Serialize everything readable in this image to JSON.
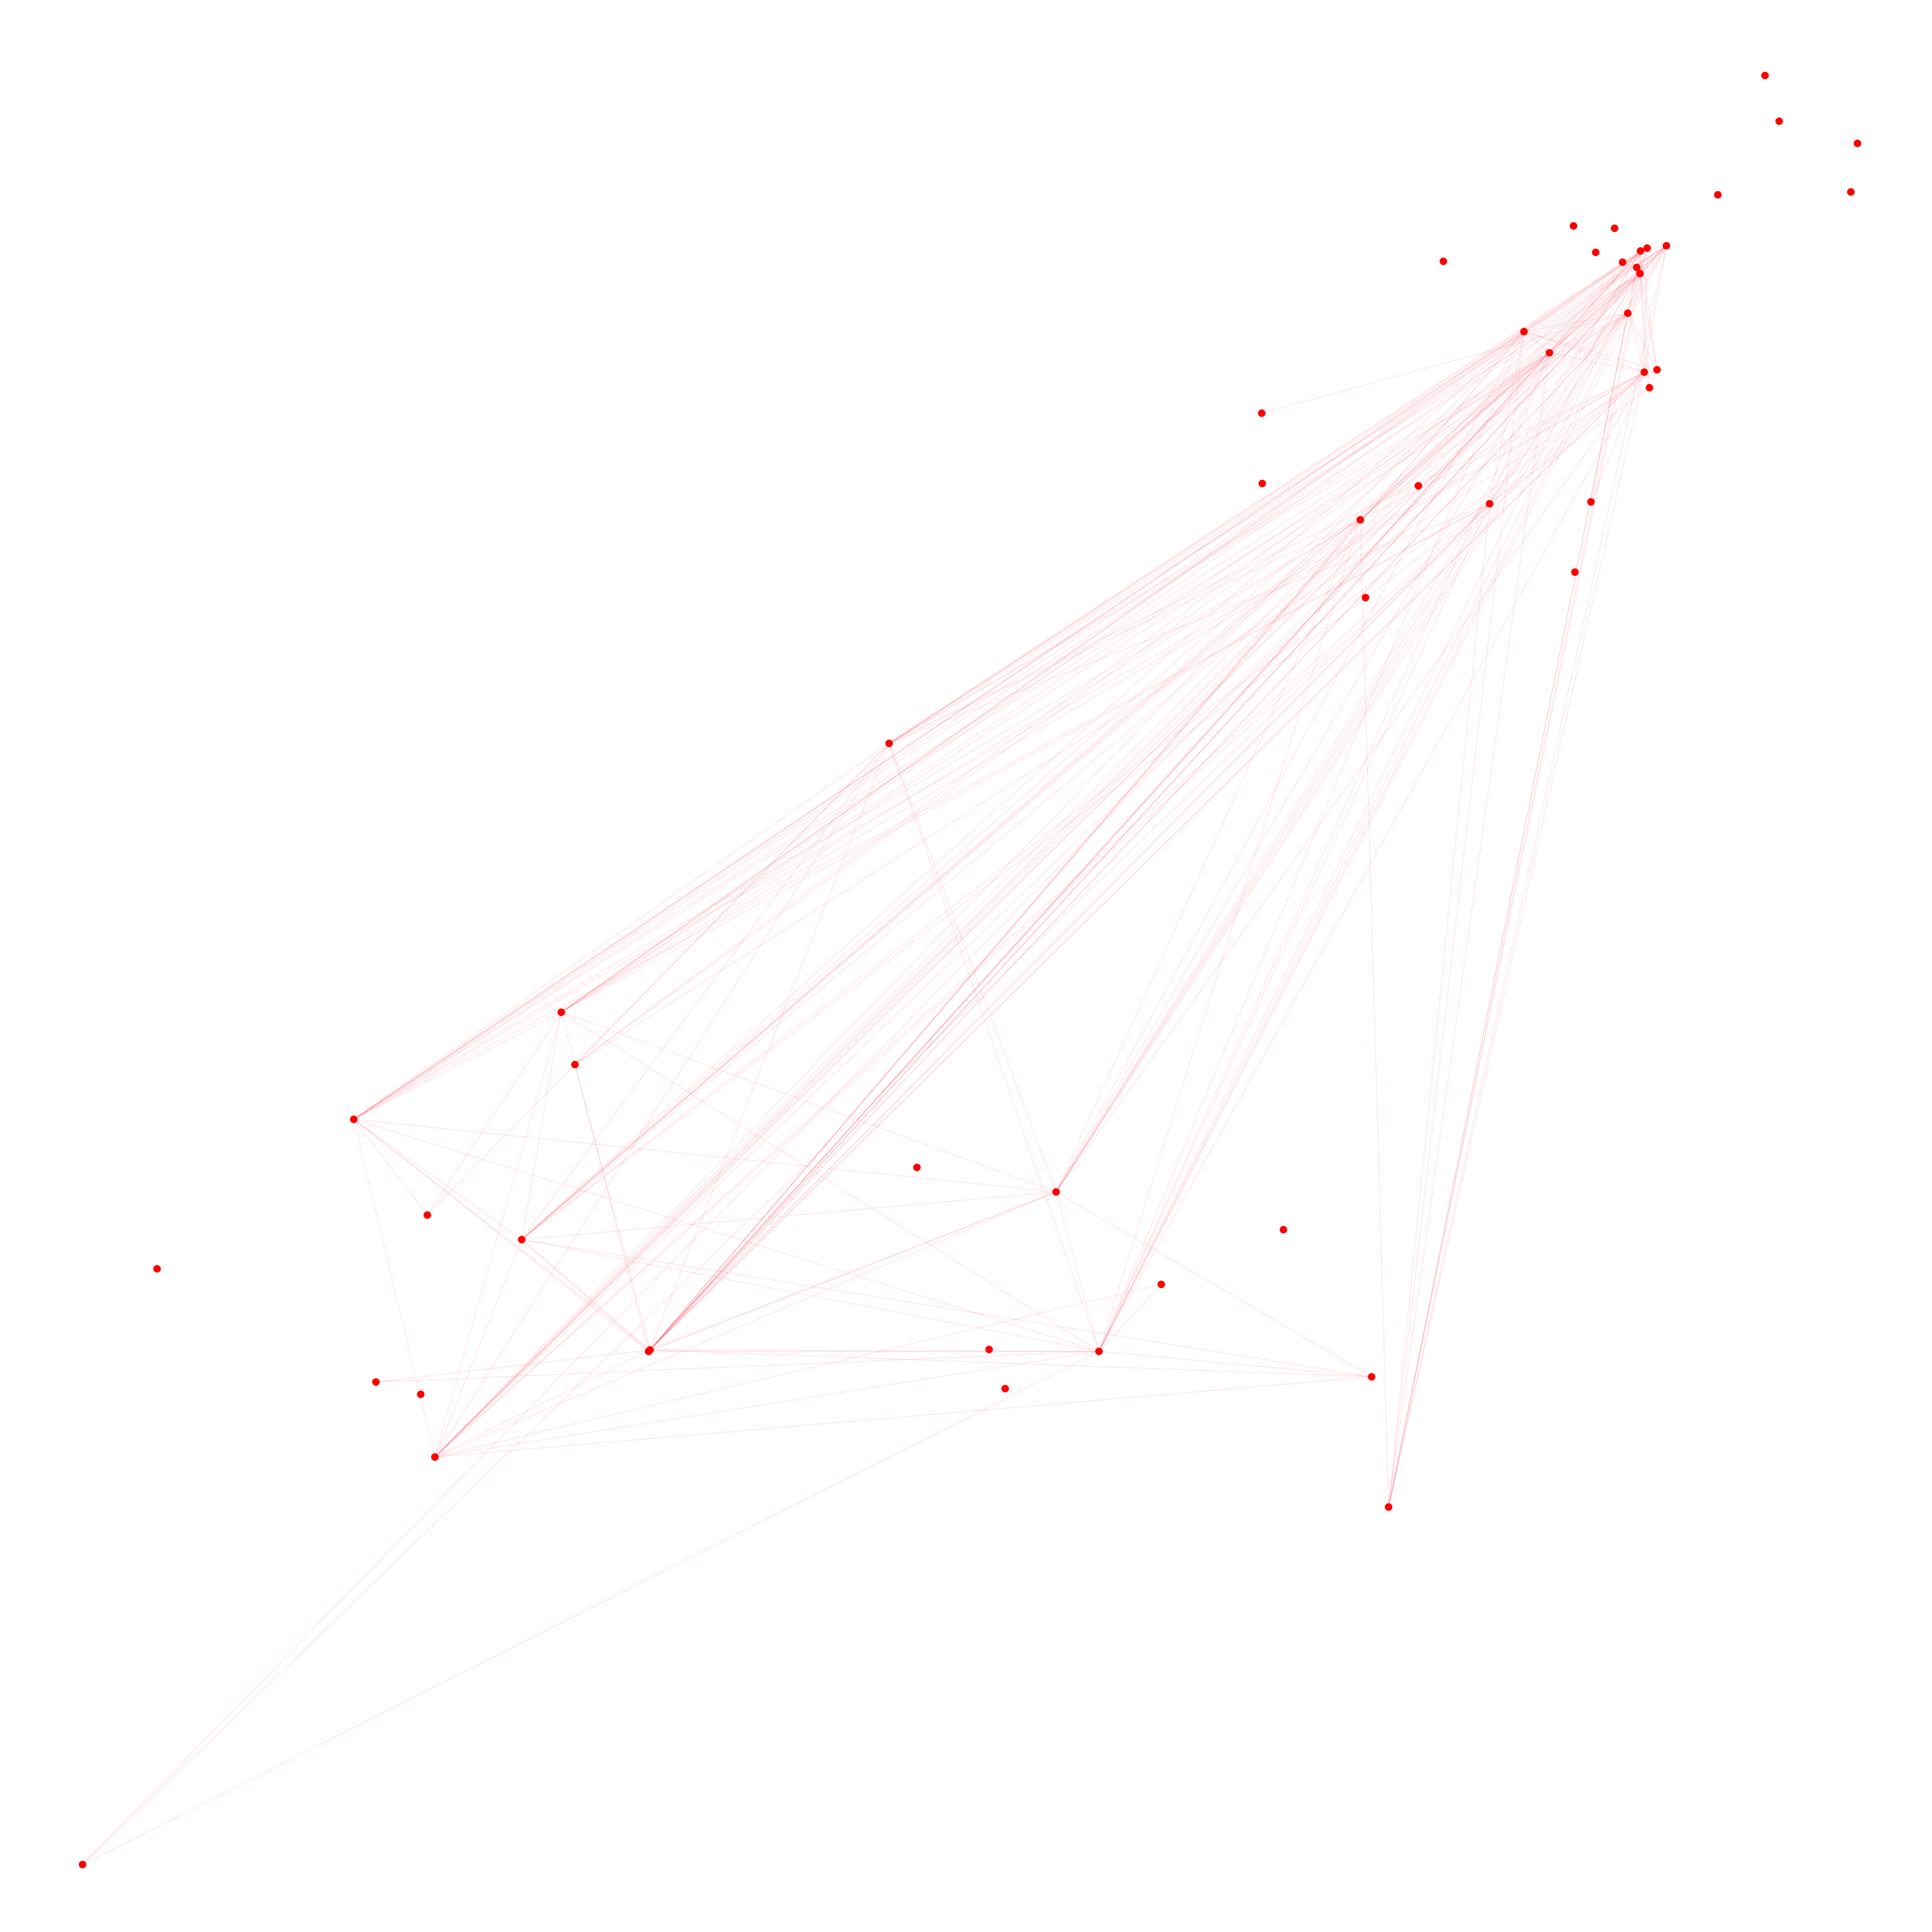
{
  "graph": {
    "background_color": "#ffffff",
    "node_color": "#ff0000",
    "edge_color": "#ff6677",
    "nodes": [
      {
        "id": "n01"
      },
      {
        "id": "n02"
      },
      {
        "id": "n03"
      },
      {
        "id": "n04"
      },
      {
        "id": "n05"
      },
      {
        "id": "n06"
      },
      {
        "id": "n07"
      },
      {
        "id": "n08"
      },
      {
        "id": "n09"
      },
      {
        "id": "n10"
      },
      {
        "id": "n11"
      },
      {
        "id": "n12"
      },
      {
        "id": "n13"
      },
      {
        "id": "n14"
      },
      {
        "id": "n15"
      },
      {
        "id": "n16"
      },
      {
        "id": "n17"
      },
      {
        "id": "n18"
      },
      {
        "id": "n19"
      },
      {
        "id": "n20"
      },
      {
        "id": "n21"
      },
      {
        "id": "n22"
      },
      {
        "id": "n23"
      },
      {
        "id": "n24"
      },
      {
        "id": "n25"
      },
      {
        "id": "n26"
      },
      {
        "id": "n27"
      },
      {
        "id": "n28"
      },
      {
        "id": "n29"
      },
      {
        "id": "n30"
      },
      {
        "id": "n31"
      },
      {
        "id": "n32"
      },
      {
        "id": "n33"
      },
      {
        "id": "n34"
      },
      {
        "id": "n35"
      },
      {
        "id": "n36"
      },
      {
        "id": "n37"
      },
      {
        "id": "n38"
      },
      {
        "id": "n39"
      },
      {
        "id": "n40"
      },
      {
        "id": "n41"
      },
      {
        "id": "n42"
      },
      {
        "id": "n43"
      },
      {
        "id": "n44"
      },
      {
        "id": "n45"
      },
      {
        "id": "n46"
      },
      {
        "id": "n47"
      },
      {
        "id": "n48"
      },
      {
        "id": "n49"
      },
      {
        "id": "n50"
      },
      {
        "id": "n51"
      }
    ],
    "edges": [
      [
        "n12",
        "n17"
      ],
      [
        "n12",
        "n19"
      ],
      [
        "n12",
        "n18"
      ],
      [
        "n12",
        "n20"
      ],
      [
        "n12",
        "n21"
      ],
      [
        "n12",
        "n15"
      ],
      [
        "n12",
        "n14"
      ],
      [
        "n12",
        "n13"
      ],
      [
        "n12",
        "n10"
      ],
      [
        "n12",
        "n28"
      ],
      [
        "n12",
        "n29"
      ],
      [
        "n12",
        "n26"
      ],
      [
        "n12",
        "n32"
      ],
      [
        "n12",
        "n33"
      ],
      [
        "n12",
        "n37"
      ],
      [
        "n12",
        "n39"
      ],
      [
        "n12",
        "n45"
      ],
      [
        "n12",
        "n44"
      ],
      [
        "n12",
        "n46"
      ],
      [
        "n16",
        "n10"
      ],
      [
        "n16",
        "n11"
      ],
      [
        "n16",
        "n17"
      ],
      [
        "n16",
        "n18"
      ],
      [
        "n16",
        "n19"
      ],
      [
        "n16",
        "n14"
      ],
      [
        "n16",
        "n13"
      ],
      [
        "n13",
        "n10"
      ],
      [
        "n13",
        "n11"
      ],
      [
        "n13",
        "n20"
      ],
      [
        "n13",
        "n15"
      ],
      [
        "n14",
        "n11"
      ],
      [
        "n14",
        "n10"
      ],
      [
        "n14",
        "n17"
      ],
      [
        "n14",
        "n20"
      ],
      [
        "n14",
        "n15"
      ],
      [
        "n15",
        "n10"
      ],
      [
        "n15",
        "n11"
      ],
      [
        "n15",
        "n17"
      ],
      [
        "n15",
        "n18"
      ],
      [
        "n15",
        "n19"
      ],
      [
        "n15",
        "n20"
      ],
      [
        "n10",
        "n17"
      ],
      [
        "n10",
        "n19"
      ],
      [
        "n10",
        "n20"
      ],
      [
        "n10",
        "n18"
      ],
      [
        "n10",
        "n21"
      ],
      [
        "n11",
        "n17"
      ],
      [
        "n11",
        "n19"
      ],
      [
        "n11",
        "n20"
      ],
      [
        "n11",
        "n18"
      ],
      [
        "n17",
        "n19"
      ],
      [
        "n17",
        "n20"
      ],
      [
        "n19",
        "n21"
      ],
      [
        "n18",
        "n21"
      ],
      [
        "n26",
        "n16"
      ],
      [
        "n26",
        "n17"
      ],
      [
        "n26",
        "n19"
      ],
      [
        "n26",
        "n20"
      ],
      [
        "n26",
        "n10"
      ],
      [
        "n26",
        "n11"
      ],
      [
        "n26",
        "n14"
      ],
      [
        "n26",
        "n13"
      ],
      [
        "n26",
        "n15"
      ],
      [
        "n26",
        "n32"
      ],
      [
        "n26",
        "n33"
      ],
      [
        "n26",
        "n37"
      ],
      [
        "n26",
        "n39"
      ],
      [
        "n26",
        "n44"
      ],
      [
        "n26",
        "n28"
      ],
      [
        "n26",
        "n29"
      ],
      [
        "n27",
        "n16"
      ],
      [
        "n27",
        "n17"
      ],
      [
        "n27",
        "n19"
      ],
      [
        "n27",
        "n20"
      ],
      [
        "n27",
        "n10"
      ],
      [
        "n27",
        "n11"
      ],
      [
        "n27",
        "n14"
      ],
      [
        "n27",
        "n13"
      ],
      [
        "n27",
        "n15"
      ],
      [
        "n27",
        "n32"
      ],
      [
        "n27",
        "n33"
      ],
      [
        "n27",
        "n37"
      ],
      [
        "n27",
        "n39"
      ],
      [
        "n27",
        "n44"
      ],
      [
        "n27",
        "n29"
      ],
      [
        "n29",
        "n16"
      ],
      [
        "n29",
        "n17"
      ],
      [
        "n29",
        "n19"
      ],
      [
        "n29",
        "n20"
      ],
      [
        "n29",
        "n10"
      ],
      [
        "n29",
        "n11"
      ],
      [
        "n29",
        "n14"
      ],
      [
        "n29",
        "n15"
      ],
      [
        "n29",
        "n13"
      ],
      [
        "n29",
        "n32"
      ],
      [
        "n29",
        "n33"
      ],
      [
        "n29",
        "n37"
      ],
      [
        "n29",
        "n39"
      ],
      [
        "n29",
        "n44"
      ],
      [
        "n32",
        "n16"
      ],
      [
        "n32",
        "n17"
      ],
      [
        "n32",
        "n19"
      ],
      [
        "n32",
        "n20"
      ],
      [
        "n32",
        "n10"
      ],
      [
        "n32",
        "n11"
      ],
      [
        "n32",
        "n15"
      ],
      [
        "n32",
        "n14"
      ],
      [
        "n32",
        "n33"
      ],
      [
        "n32",
        "n37"
      ],
      [
        "n32",
        "n39"
      ],
      [
        "n32",
        "n44"
      ],
      [
        "n33",
        "n16"
      ],
      [
        "n33",
        "n17"
      ],
      [
        "n33",
        "n19"
      ],
      [
        "n33",
        "n20"
      ],
      [
        "n33",
        "n10"
      ],
      [
        "n33",
        "n11"
      ],
      [
        "n33",
        "n15"
      ],
      [
        "n33",
        "n14"
      ],
      [
        "n33",
        "n37"
      ],
      [
        "n33",
        "n39"
      ],
      [
        "n33",
        "n44"
      ],
      [
        "n37",
        "n16"
      ],
      [
        "n37",
        "n17"
      ],
      [
        "n37",
        "n19"
      ],
      [
        "n37",
        "n20"
      ],
      [
        "n37",
        "n10"
      ],
      [
        "n37",
        "n11"
      ],
      [
        "n37",
        "n15"
      ],
      [
        "n37",
        "n14"
      ],
      [
        "n37",
        "n39"
      ],
      [
        "n37",
        "n44"
      ],
      [
        "n39",
        "n16"
      ],
      [
        "n39",
        "n17"
      ],
      [
        "n39",
        "n19"
      ],
      [
        "n39",
        "n20"
      ],
      [
        "n39",
        "n10"
      ],
      [
        "n39",
        "n11"
      ],
      [
        "n39",
        "n15"
      ],
      [
        "n39",
        "n14"
      ],
      [
        "n39",
        "n44"
      ],
      [
        "n44",
        "n16"
      ],
      [
        "n44",
        "n17"
      ],
      [
        "n44",
        "n19"
      ],
      [
        "n44",
        "n20"
      ],
      [
        "n44",
        "n10"
      ],
      [
        "n44",
        "n11"
      ],
      [
        "n44",
        "n15"
      ],
      [
        "n44",
        "n14"
      ],
      [
        "n44",
        "n13"
      ],
      [
        "n51",
        "n16"
      ],
      [
        "n51",
        "n17"
      ],
      [
        "n51",
        "n19"
      ],
      [
        "n51",
        "n20"
      ],
      [
        "n51",
        "n10"
      ],
      [
        "n51",
        "n11"
      ],
      [
        "n51",
        "n15"
      ],
      [
        "n51",
        "n14"
      ],
      [
        "n51",
        "n13"
      ],
      [
        "n51",
        "n32"
      ],
      [
        "n51",
        "n33"
      ],
      [
        "n51",
        "n37"
      ],
      [
        "n51",
        "n39"
      ],
      [
        "n51",
        "n29"
      ],
      [
        "n51",
        "n28"
      ],
      [
        "n45",
        "n17"
      ],
      [
        "n45",
        "n19"
      ],
      [
        "n45",
        "n20"
      ],
      [
        "n45",
        "n10"
      ],
      [
        "n45",
        "n11"
      ],
      [
        "n45",
        "n15"
      ],
      [
        "n45",
        "n14"
      ],
      [
        "n45",
        "n13"
      ],
      [
        "n45",
        "n16"
      ],
      [
        "n40",
        "n39"
      ],
      [
        "n40",
        "n37"
      ],
      [
        "n40",
        "n33"
      ],
      [
        "n40",
        "n32"
      ],
      [
        "n40",
        "n44"
      ],
      [
        "n30",
        "n27"
      ],
      [
        "n30",
        "n29"
      ],
      [
        "n30",
        "n26"
      ],
      [
        "n28",
        "n17"
      ],
      [
        "n28",
        "n18"
      ],
      [
        "n36",
        "n39"
      ],
      [
        "n36",
        "n44"
      ],
      [
        "n41",
        "n39"
      ],
      [
        "n41",
        "n37"
      ],
      [
        "n46",
        "n19"
      ],
      [
        "n46",
        "n39"
      ],
      [
        "n24",
        "n10"
      ],
      [
        "n24",
        "n11"
      ],
      [
        "n22",
        "n10"
      ]
    ]
  }
}
